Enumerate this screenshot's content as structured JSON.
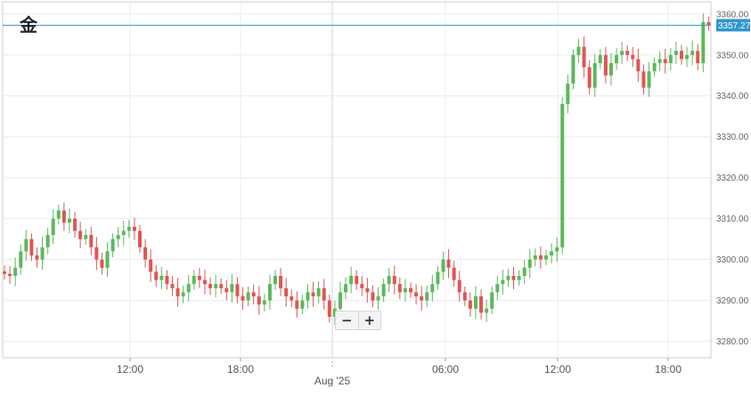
{
  "chart_data": {
    "type": "candlestick",
    "title": "金",
    "x_tick_labels": [
      "12:00",
      "18:00",
      "06:00",
      "12:00",
      "18:00"
    ],
    "x_date_label": "Aug '25",
    "y_ticks": [
      3280,
      3290,
      3300,
      3310,
      3320,
      3330,
      3340,
      3350,
      3360
    ],
    "y_tick_labels": [
      "3280.00",
      "3290.00",
      "3300.00",
      "3310.00",
      "3320.00",
      "3330.00",
      "3340.00",
      "3350.00",
      "3360.00"
    ],
    "ylim": [
      3276,
      3363
    ],
    "last_price": 3357.27,
    "last_price_label": "3357.27",
    "grid": true,
    "up_color": "#5cb85c",
    "down_color": "#e05555",
    "price_line_color": "#2f96d0",
    "closes": [
      3296.5,
      3296,
      3298,
      3302,
      3305,
      3301,
      3300,
      3303,
      3306,
      3310,
      3312,
      3309,
      3310,
      3307,
      3305,
      3306,
      3303,
      3300,
      3298,
      3302,
      3305,
      3306,
      3307,
      3308,
      3307,
      3303,
      3300,
      3297,
      3295,
      3296,
      3294,
      3293,
      3291,
      3292,
      3294,
      3296,
      3295,
      3294,
      3293,
      3294,
      3293,
      3292,
      3294,
      3291,
      3290,
      3292,
      3291,
      3289,
      3290,
      3294,
      3296,
      3293,
      3291,
      3290,
      3288,
      3290,
      3292,
      3291,
      3293,
      3290,
      3286,
      3288,
      3292,
      3294,
      3296,
      3294,
      3293,
      3292,
      3290,
      3291,
      3294,
      3296,
      3294,
      3292,
      3293,
      3292,
      3291,
      3290,
      3292,
      3294,
      3297,
      3300,
      3298,
      3295,
      3292,
      3290,
      3288,
      3291,
      3287,
      3288,
      3292,
      3294,
      3295,
      3296,
      3295,
      3296,
      3298,
      3300,
      3301,
      3300,
      3301,
      3302,
      3303,
      3338,
      3343,
      3350,
      3352,
      3347,
      3342,
      3348,
      3350,
      3345,
      3348,
      3350,
      3351,
      3350,
      3349,
      3346,
      3342,
      3346,
      3348,
      3349,
      3348,
      3350,
      3351,
      3349,
      3350,
      3351,
      3348,
      3358,
      3357.27
    ]
  },
  "zoom": {
    "minus": "−",
    "plus": "+"
  }
}
